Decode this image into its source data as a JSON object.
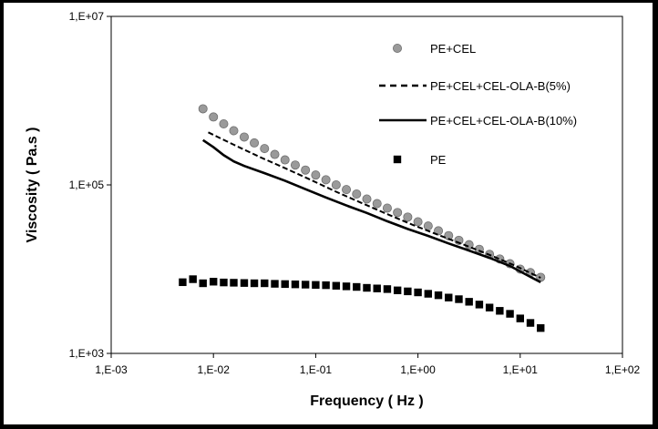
{
  "chart_data": {
    "type": "line",
    "xscale": "log",
    "yscale": "log",
    "xlabel": "Frequency  ( Hz )",
    "ylabel": "Viscosity  ( Pa.s )",
    "xlim": [
      0.001,
      100
    ],
    "ylim": [
      1000,
      10000000
    ],
    "x_tick_labels": [
      "1,E-03",
      "1,E-02",
      "1,E-01",
      "1,E+00",
      "1,E+01",
      "1,E+02"
    ],
    "y_tick_labels": [
      "1,E+03",
      "1,E+05",
      "1,E+07"
    ],
    "grid": false,
    "legend_position": "top-right",
    "series": [
      {
        "name": "PE+CEL",
        "style": "circles",
        "color": "#9a9a9a",
        "x": [
          0.0079,
          0.01,
          0.0126,
          0.0158,
          0.02,
          0.0251,
          0.0316,
          0.0398,
          0.0501,
          0.0631,
          0.0794,
          0.1,
          0.1259,
          0.1585,
          0.1995,
          0.2512,
          0.3162,
          0.3981,
          0.5012,
          0.631,
          0.7943,
          1.0,
          1.2589,
          1.5849,
          1.9953,
          2.5119,
          3.1623,
          3.9811,
          5.0119,
          6.3096,
          7.9433,
          10.0,
          12.589,
          15.849
        ],
        "y": [
          800000,
          640000,
          530000,
          440000,
          370000,
          315000,
          270000,
          230000,
          198000,
          172000,
          150000,
          131000,
          115000,
          100000,
          88000,
          78000,
          68000,
          60000,
          53000,
          47000,
          41500,
          36500,
          32500,
          28500,
          25000,
          22000,
          19500,
          17200,
          15000,
          13200,
          11600,
          10000,
          9100,
          8000
        ]
      },
      {
        "name": "PE+CEL+CEL-OLA-B(5%)",
        "style": "dashed",
        "color": "#000000",
        "x": [
          0.0089,
          0.0158,
          0.0282,
          0.0501,
          0.0891,
          0.1585,
          0.2818,
          0.5012,
          0.8913,
          1.5849,
          2.8184,
          5.0119,
          8.9125,
          15.849
        ],
        "y": [
          420000,
          300000,
          215000,
          158000,
          115000,
          83000,
          61000,
          45000,
          33500,
          25500,
          19500,
          14800,
          11000,
          7900
        ]
      },
      {
        "name": "PE+CEL+CEL-OLA-B(10%)",
        "style": "solid",
        "color": "#000000",
        "x": [
          0.0079,
          0.01,
          0.0126,
          0.0158,
          0.02,
          0.0316,
          0.0501,
          0.0794,
          0.1259,
          0.1995,
          0.3162,
          0.5012,
          0.7943,
          1.2589,
          1.9953,
          3.1623,
          5.0119,
          7.9433,
          12.589,
          15.849
        ],
        "y": [
          340000,
          280000,
          225000,
          190000,
          168000,
          138000,
          112000,
          89000,
          71000,
          57000,
          46500,
          37000,
          30000,
          24800,
          20200,
          16600,
          13600,
          10900,
          8100,
          7000
        ]
      },
      {
        "name": "PE",
        "style": "squares",
        "color": "#000000",
        "x": [
          0.005,
          0.0063,
          0.0079,
          0.01,
          0.0126,
          0.0158,
          0.02,
          0.0251,
          0.0316,
          0.0398,
          0.0501,
          0.0631,
          0.0794,
          0.1,
          0.1259,
          0.1585,
          0.1995,
          0.2512,
          0.3162,
          0.3981,
          0.5012,
          0.631,
          0.7943,
          1.0,
          1.2589,
          1.5849,
          1.9953,
          2.5119,
          3.1623,
          3.9811,
          5.0119,
          6.3096,
          7.9433,
          10.0,
          12.589,
          15.849
        ],
        "y": [
          7000,
          7600,
          6800,
          7100,
          6950,
          6900,
          6850,
          6800,
          6800,
          6700,
          6650,
          6600,
          6550,
          6500,
          6450,
          6350,
          6250,
          6150,
          6000,
          5900,
          5800,
          5600,
          5450,
          5300,
          5100,
          4900,
          4600,
          4400,
          4100,
          3800,
          3500,
          3200,
          2950,
          2600,
          2300,
          2000
        ]
      }
    ]
  }
}
